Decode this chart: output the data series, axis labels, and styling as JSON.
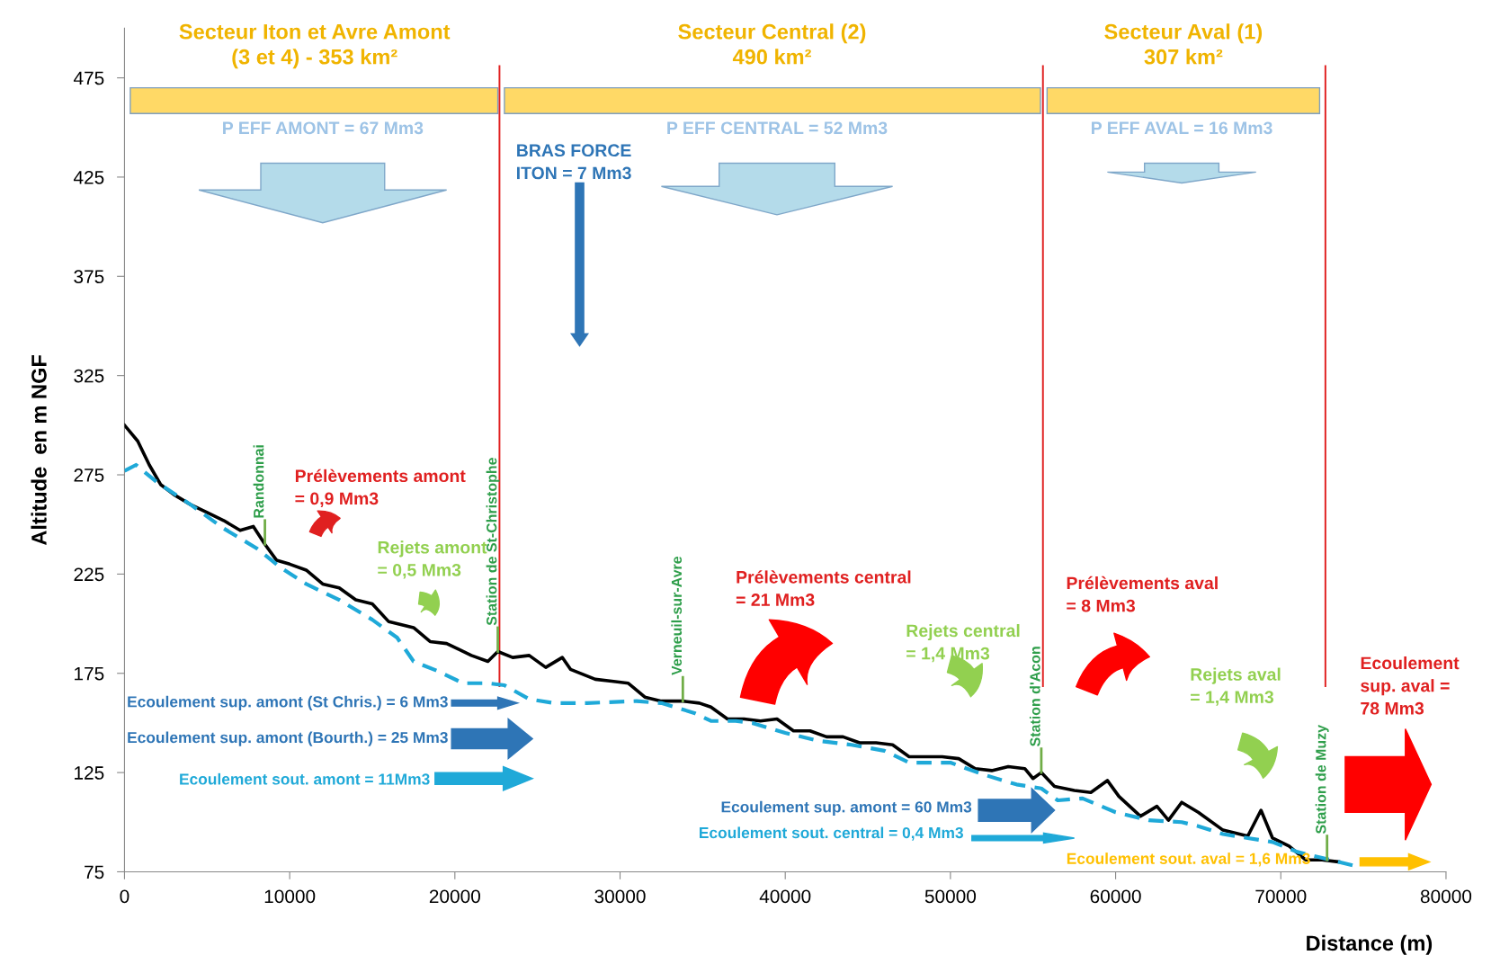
{
  "chart_data": {
    "type": "line",
    "xlabel": "Distance (m)",
    "ylabel": "Altitude  en m NGF",
    "xlim": [
      0,
      80000
    ],
    "ylim": [
      75,
      500
    ],
    "xticks": [
      0,
      10000,
      20000,
      30000,
      40000,
      50000,
      60000,
      70000,
      80000
    ],
    "yticks": [
      75,
      125,
      175,
      225,
      275,
      325,
      375,
      425,
      475
    ],
    "grid": false,
    "legend": false,
    "marker": "none",
    "series": [
      {
        "color": "#000000",
        "line_style": "solid",
        "x": [
          0,
          800,
          1500,
          2200,
          3000,
          4000,
          5000,
          6000,
          7000,
          7800,
          8500,
          9200,
          10000,
          11000,
          12000,
          13000,
          14000,
          15000,
          16000,
          17500,
          18500,
          19500,
          21000,
          22000,
          22600,
          23500,
          24500,
          25500,
          26500,
          27000,
          28500,
          29500,
          30500,
          31500,
          32500,
          33800,
          34800,
          35500,
          36500,
          37500,
          38500,
          39500,
          40500,
          41500,
          42500,
          43500,
          44500,
          45500,
          46500,
          47500,
          48500,
          49500,
          50500,
          51500,
          52500,
          53500,
          54500,
          55000,
          55500,
          56300,
          57500,
          58500,
          59500,
          60200,
          61500,
          62500,
          63200,
          64000,
          65000,
          66500,
          68000,
          68800,
          69500,
          70500,
          71500,
          72500,
          73500
        ],
        "values": [
          300,
          292,
          280,
          270,
          265,
          260,
          256,
          252,
          247,
          249,
          240,
          232,
          230,
          227,
          220,
          218,
          212,
          210,
          201,
          198,
          191,
          190,
          184,
          181,
          186,
          183,
          184,
          178,
          183,
          177,
          172,
          171,
          170,
          163,
          161,
          161,
          160,
          158,
          152,
          152,
          151,
          152,
          146,
          146,
          143,
          143,
          140,
          140,
          139,
          133,
          133,
          133,
          132,
          127,
          126,
          128,
          127,
          122,
          125,
          118,
          116,
          115,
          121,
          113,
          103,
          108,
          101,
          110,
          105,
          96,
          93,
          106,
          92,
          88,
          81,
          81,
          80
        ]
      },
      {
        "color": "#1fa9d8",
        "line_style": "dashed",
        "x": [
          0,
          700,
          2000,
          4000,
          6000,
          8000,
          9500,
          11000,
          13000,
          15000,
          16500,
          17500,
          19000,
          20500,
          22000,
          23000,
          24500,
          26000,
          28000,
          31000,
          32500,
          34500,
          35500,
          37000,
          38000,
          40000,
          42000,
          44000,
          46000,
          47500,
          50000,
          52000,
          54000,
          55500,
          56500,
          58000,
          60000,
          62000,
          64000,
          65000,
          66500,
          68000,
          69500,
          71000,
          72500,
          73500,
          74500
        ],
        "values": [
          277,
          280,
          271,
          260,
          248,
          238,
          228,
          220,
          212,
          202,
          193,
          181,
          176,
          170,
          170,
          169,
          162,
          160,
          160,
          161,
          160,
          155,
          151,
          151,
          150,
          145,
          141,
          139,
          136,
          130,
          130,
          124,
          119,
          117,
          111,
          112,
          105,
          101,
          100,
          98,
          94,
          92,
          90,
          85,
          82,
          80,
          78
        ]
      }
    ],
    "ref_lines": [
      {
        "axis": "x",
        "value": 22700,
        "color": "#e02020"
      },
      {
        "axis": "x",
        "value": 55600,
        "color": "#e02020"
      },
      {
        "axis": "x",
        "value": 72700,
        "color": "#e02020"
      }
    ],
    "annotations": [
      "Secteur Iton et Avre Amont\n(3 et 4) - 353 km²",
      "Secteur Central (2)\n490 km²",
      "Secteur Aval (1)\n307 km²",
      "P EFF AMONT = 67 Mm3",
      "BRAS FORCE\nITON = 7 Mm3",
      "P EFF CENTRAL = 52 Mm3",
      "P EFF AVAL = 16 Mm3",
      "Prélèvements amont\n= 0,9 Mm3",
      "Rejets amont\n= 0,5 Mm3",
      "Prélèvements central\n= 21 Mm3",
      "Rejets central\n= 1,4 Mm3",
      "Prélèvements aval\n= 8 Mm3",
      "Rejets aval\n= 1,4 Mm3",
      "Ecoulement\nsup. aval =\n78 Mm3",
      "Ecoulement sup. amont (St Chris.) = 6 Mm3",
      "Ecoulement sup. amont (Bourth.) = 25 Mm3",
      "Ecoulement sout. amont = 11Mm3",
      "Ecoulement sup. amont = 60 Mm3",
      "Ecoulement sout. central = 0,4 Mm3",
      "Ecoulement sout. aval = 1,6 Mm3",
      {
        "text": "Randonnai",
        "x": 8500,
        "y": 240
      },
      {
        "text": "Station de St-Christophe",
        "x": 22600,
        "y": 186
      },
      {
        "text": "Verneuil-sur-Avre",
        "x": 33800,
        "y": 161
      },
      {
        "text": "Station d'Acon",
        "x": 55500,
        "y": 125
      },
      {
        "text": "Station de Muzy",
        "x": 72800,
        "y": 81
      }
    ]
  }
}
